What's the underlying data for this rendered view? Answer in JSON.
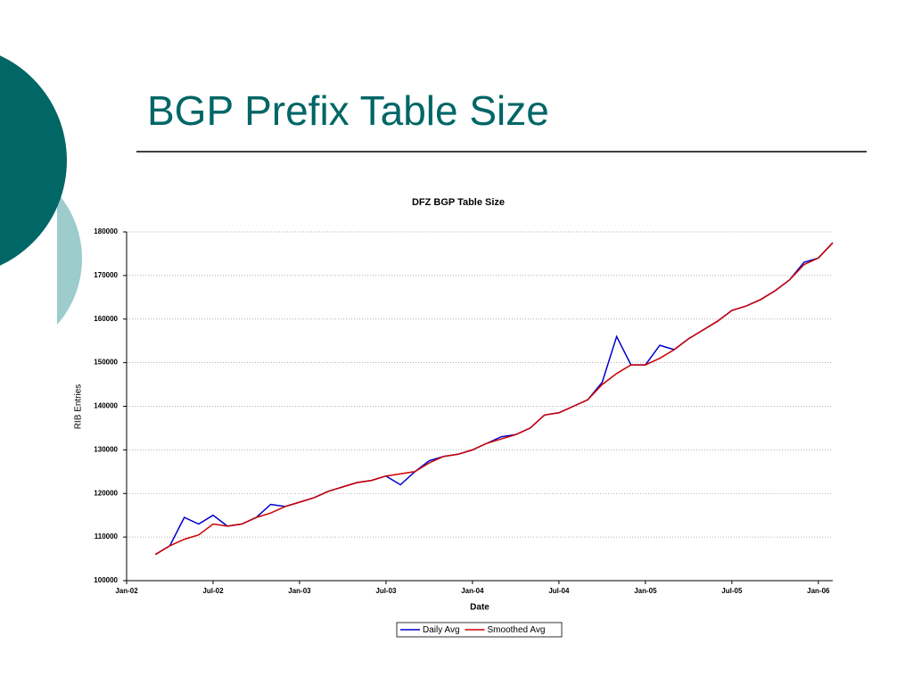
{
  "slide_title": "BGP Prefix Table Size",
  "chart_data": {
    "type": "line",
    "title": "DFZ BGP Table Size",
    "x_label": "Date",
    "y_label": "RIB Entries",
    "x": [
      "2002-03",
      "2002-04",
      "2002-05",
      "2002-06",
      "2002-07",
      "2002-08",
      "2002-09",
      "2002-10",
      "2002-11",
      "2002-12",
      "2003-01",
      "2003-02",
      "2003-03",
      "2003-04",
      "2003-05",
      "2003-06",
      "2003-07",
      "2003-08",
      "2003-09",
      "2003-10",
      "2003-11",
      "2003-12",
      "2004-01",
      "2004-02",
      "2004-03",
      "2004-04",
      "2004-05",
      "2004-06",
      "2004-07",
      "2004-08",
      "2004-09",
      "2004-10",
      "2004-11",
      "2004-12",
      "2005-01",
      "2005-02",
      "2005-03",
      "2005-04",
      "2005-05",
      "2005-06",
      "2005-07",
      "2005-08",
      "2005-09",
      "2005-10",
      "2005-11",
      "2005-12",
      "2006-01",
      "2006-02"
    ],
    "series": [
      {
        "name": "Daily Avg",
        "color": "#0000cc",
        "values": [
          106000,
          108000,
          114500,
          113000,
          115000,
          112500,
          113000,
          114500,
          117500,
          117000,
          118000,
          119000,
          120500,
          121500,
          122500,
          123000,
          124000,
          122000,
          125000,
          127500,
          128500,
          129000,
          130000,
          131500,
          133000,
          133500,
          135000,
          138000,
          138500,
          140000,
          141500,
          145500,
          156000,
          149500,
          149500,
          154000,
          153000,
          155500,
          157500,
          159500,
          162000,
          163000,
          164500,
          166500,
          169000,
          173000,
          174000,
          177500
        ]
      },
      {
        "name": "Smoothed Avg",
        "color": "#cc0000",
        "values": [
          106000,
          108000,
          109500,
          110500,
          113000,
          112500,
          113000,
          114500,
          115500,
          117000,
          118000,
          119000,
          120500,
          121500,
          122500,
          123000,
          124000,
          124500,
          125000,
          127000,
          128500,
          129000,
          130000,
          131500,
          132500,
          133500,
          135000,
          138000,
          138500,
          140000,
          141500,
          145000,
          147500,
          149500,
          149500,
          151000,
          153000,
          155500,
          157500,
          159500,
          162000,
          163000,
          164500,
          166500,
          169000,
          172500,
          174000,
          177500
        ]
      }
    ],
    "xlim": [
      "2002-01",
      "2006-02"
    ],
    "xticks": [
      {
        "value": "2002-01",
        "label": "Jan-02"
      },
      {
        "value": "2002-07",
        "label": "Jul-02"
      },
      {
        "value": "2003-01",
        "label": "Jan-03"
      },
      {
        "value": "2003-07",
        "label": "Jul-03"
      },
      {
        "value": "2004-01",
        "label": "Jan-04"
      },
      {
        "value": "2004-07",
        "label": "Jul-04"
      },
      {
        "value": "2005-01",
        "label": "Jan-05"
      },
      {
        "value": "2005-07",
        "label": "Jul-05"
      },
      {
        "value": "2006-01",
        "label": "Jan-06"
      }
    ],
    "ylim": [
      100000,
      180000
    ],
    "yticks": [
      100000,
      110000,
      120000,
      130000,
      140000,
      150000,
      160000,
      170000,
      180000
    ],
    "grid": true,
    "legend": "bottom"
  }
}
